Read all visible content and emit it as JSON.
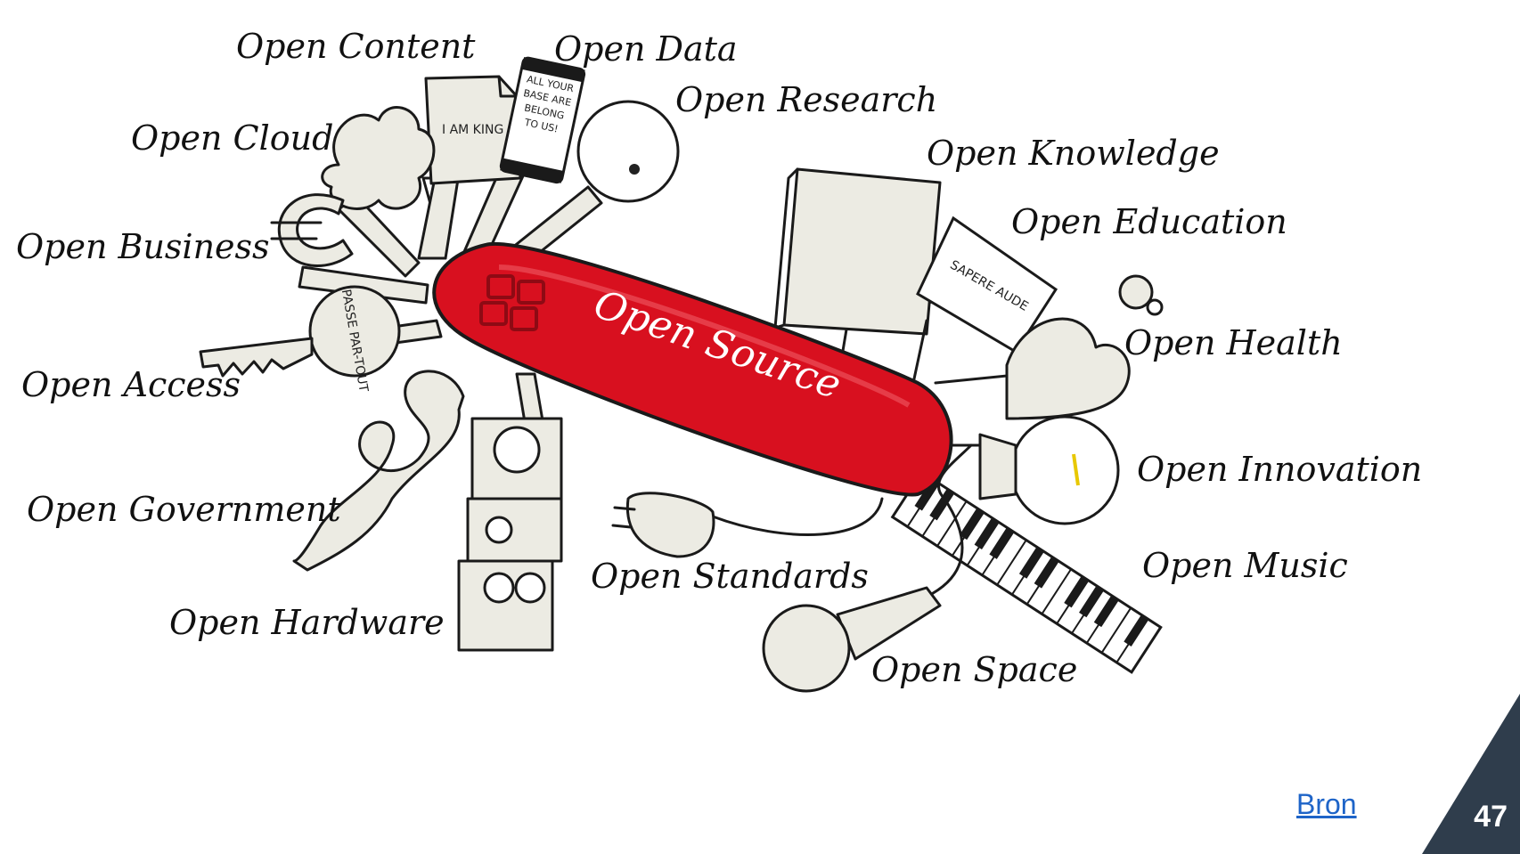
{
  "illustration": {
    "center_label": "Open Source",
    "labels": {
      "content": "Open Content",
      "data": "Open Data",
      "research": "Open Research",
      "cloud": "Open Cloud",
      "knowledge": "Open Knowledge",
      "education": "Open Education",
      "business": "Open Business",
      "health": "Open Health",
      "access": "Open Access",
      "innovation": "Open Innovation",
      "government": "Open Government",
      "standards": "Open Standards",
      "music": "Open Music",
      "hardware": "Open Hardware",
      "space": "Open Space"
    },
    "prop_text": {
      "paper": "I AM KING",
      "can": "ALL YOUR BASE ARE BELONG TO US!",
      "key": "PASSE PAR-TOUT",
      "sign": "SAPERE AUDE"
    },
    "colors": {
      "knife": "#d8101f",
      "ink": "#1a1a1a",
      "paper": "#ecebe3"
    }
  },
  "footer": {
    "source_link": "Bron",
    "page_number": "47",
    "corner_color": "#2f3d4c"
  }
}
